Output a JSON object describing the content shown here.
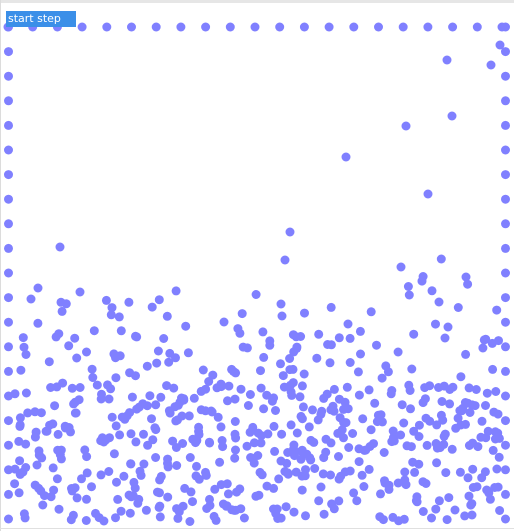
{
  "toolbar": {
    "start_step_label": "start step"
  },
  "colors": {
    "particle": "#8080ff",
    "button_background": "#3b8fe8",
    "button_text": "#ffffff",
    "background": "#ffffff"
  }
}
